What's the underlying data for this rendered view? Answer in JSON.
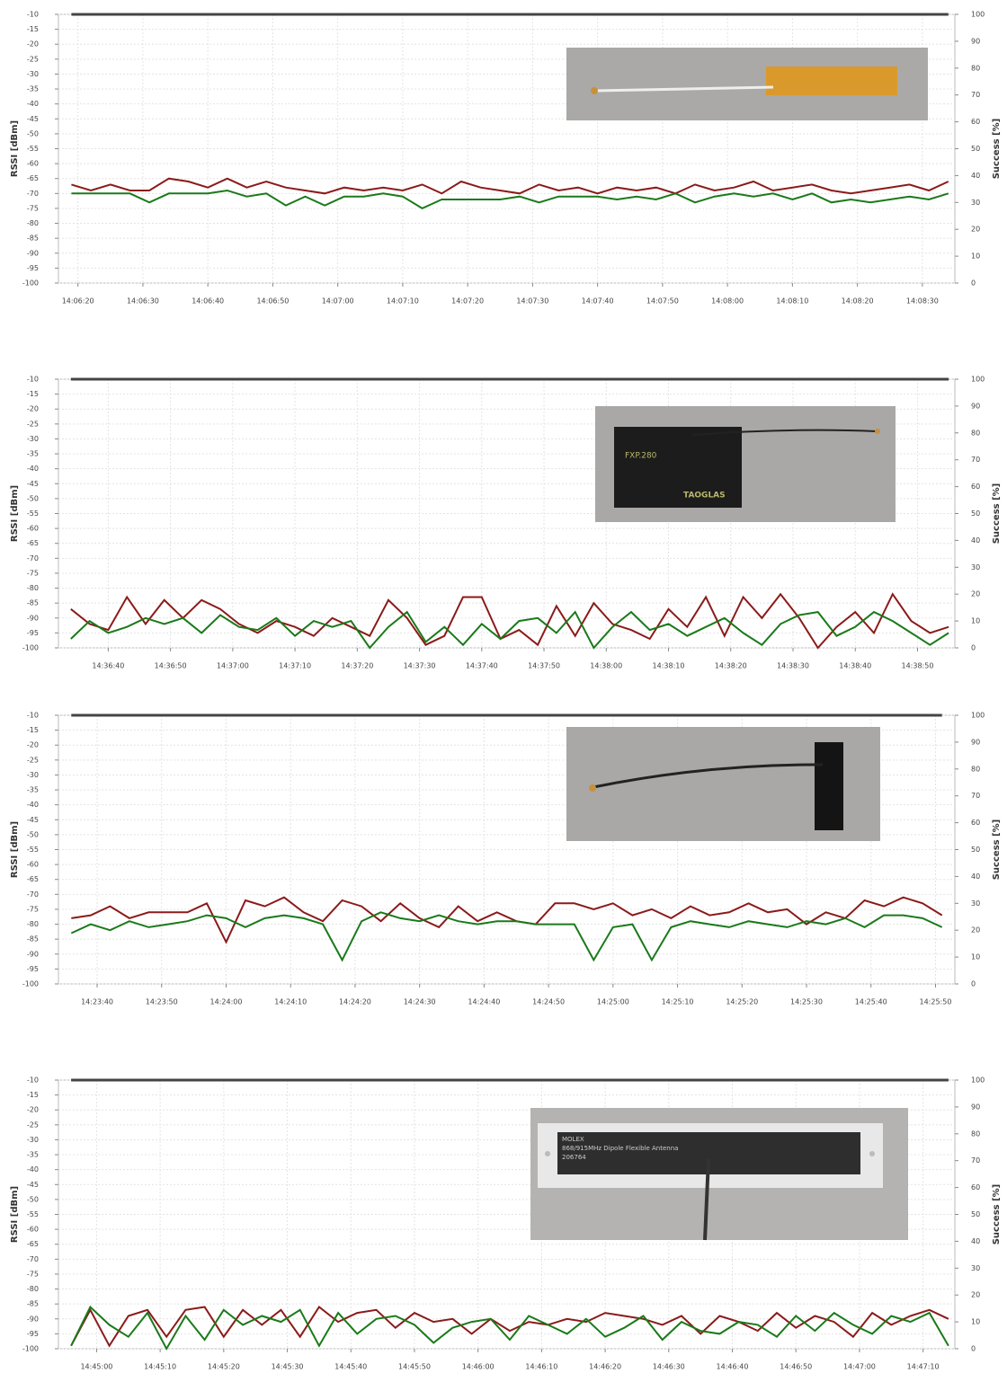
{
  "chart_data": [
    {
      "type": "line",
      "y_label": "RSSI [dBm]",
      "y2_label": "Success [%]",
      "x": [
        "14:06:19",
        "14:06:22",
        "14:06:25",
        "14:06:28",
        "14:06:31",
        "14:06:34",
        "14:06:37",
        "14:06:40",
        "14:06:43",
        "14:06:46",
        "14:06:49",
        "14:06:52",
        "14:06:55",
        "14:06:58",
        "14:07:01",
        "14:07:04",
        "14:07:07",
        "14:07:10",
        "14:07:13",
        "14:07:16",
        "14:07:19",
        "14:07:22",
        "14:07:25",
        "14:07:28",
        "14:07:31",
        "14:07:34",
        "14:07:37",
        "14:07:40",
        "14:07:43",
        "14:07:46",
        "14:07:49",
        "14:07:52",
        "14:07:55",
        "14:07:58",
        "14:08:01",
        "14:08:04",
        "14:08:07",
        "14:08:10",
        "14:08:13",
        "14:08:16",
        "14:08:19",
        "14:08:22",
        "14:08:25",
        "14:08:28",
        "14:08:31",
        "14:08:34"
      ],
      "xlim": [
        "14:06:17",
        "14:08:35"
      ],
      "xticks": [
        "14:06:20",
        "14:06:30",
        "14:06:40",
        "14:06:50",
        "14:07:00",
        "14:07:10",
        "14:07:20",
        "14:07:30",
        "14:07:40",
        "14:07:50",
        "14:08:00",
        "14:08:10",
        "14:08:20",
        "14:08:30"
      ],
      "ylim": [
        -100,
        -10
      ],
      "yticks": [
        -10,
        -15,
        -20,
        -25,
        -30,
        -35,
        -40,
        -45,
        -50,
        -55,
        -60,
        -65,
        -70,
        -75,
        -80,
        -85,
        -90,
        -95,
        -100
      ],
      "y2lim": [
        0,
        100
      ],
      "y2ticks": [
        0,
        10,
        20,
        30,
        40,
        50,
        60,
        70,
        80,
        90,
        100
      ],
      "grid": true,
      "series": [
        {
          "color": "#8b1a1a",
          "values": [
            -67,
            -69,
            -67,
            -69,
            -69,
            -65,
            -66,
            -68,
            -65,
            -68,
            -66,
            -68,
            -69,
            -70,
            -68,
            -69,
            -68,
            -69,
            -67,
            -70,
            -66,
            -68,
            -69,
            -70,
            -67,
            -69,
            -68,
            -70,
            -68,
            -69,
            -68,
            -70,
            -67,
            -69,
            -68,
            -66,
            -69,
            -68,
            -67,
            -69,
            -70,
            -69,
            -68,
            -67,
            -69,
            -66
          ]
        },
        {
          "color": "#1a7a1a",
          "values": [
            -70,
            -70,
            -70,
            -70,
            -73,
            -70,
            -70,
            -70,
            -69,
            -71,
            -70,
            -74,
            -71,
            -74,
            -71,
            -71,
            -70,
            -71,
            -75,
            -72,
            -72,
            -72,
            -72,
            -71,
            -73,
            -71,
            -71,
            -71,
            -72,
            -71,
            -72,
            -70,
            -73,
            -71,
            -70,
            -71,
            -70,
            -72,
            -70,
            -73,
            -72,
            -73,
            -72,
            -71,
            -72,
            -70
          ]
        },
        {
          "color": "#444444",
          "axis": "y2",
          "values": [
            100,
            100,
            100,
            100,
            100,
            100,
            100,
            100,
            100,
            100,
            100,
            100,
            100,
            100,
            100,
            100,
            100,
            100,
            100,
            100,
            100,
            100,
            100,
            100,
            100,
            100,
            100,
            100,
            100,
            100,
            100,
            100,
            100,
            100,
            100,
            100,
            100,
            100,
            100,
            100,
            100,
            100,
            100,
            100,
            100,
            100
          ]
        }
      ]
    },
    {
      "type": "line",
      "y_label": "RSSI [dBm]",
      "y2_label": "Success [%]",
      "x": [
        "14:36:34",
        "14:36:37",
        "14:36:40",
        "14:36:43",
        "14:36:46",
        "14:36:49",
        "14:36:52",
        "14:36:55",
        "14:36:58",
        "14:37:01",
        "14:37:04",
        "14:37:07",
        "14:37:10",
        "14:37:13",
        "14:37:16",
        "14:37:19",
        "14:37:22",
        "14:37:25",
        "14:37:28",
        "14:37:31",
        "14:37:34",
        "14:37:37",
        "14:37:40",
        "14:37:43",
        "14:37:46",
        "14:37:49",
        "14:37:52",
        "14:37:55",
        "14:37:58",
        "14:38:01",
        "14:38:04",
        "14:38:07",
        "14:38:10",
        "14:38:13",
        "14:38:16",
        "14:38:19",
        "14:38:22",
        "14:38:25",
        "14:38:28",
        "14:38:31",
        "14:38:34",
        "14:38:37",
        "14:38:40",
        "14:38:43",
        "14:38:46",
        "14:38:49",
        "14:38:52",
        "14:38:55"
      ],
      "xlim": [
        "14:36:32",
        "14:38:56"
      ],
      "xticks": [
        "14:36:40",
        "14:36:50",
        "14:37:00",
        "14:37:10",
        "14:37:20",
        "14:37:30",
        "14:37:40",
        "14:37:50",
        "14:38:00",
        "14:38:10",
        "14:38:20",
        "14:38:30",
        "14:38:40",
        "14:38:50"
      ],
      "ylim": [
        -100,
        -10
      ],
      "yticks": [
        -10,
        -15,
        -20,
        -25,
        -30,
        -35,
        -40,
        -45,
        -50,
        -55,
        -60,
        -65,
        -70,
        -75,
        -80,
        -85,
        -90,
        -95,
        -100
      ],
      "y2lim": [
        0,
        100
      ],
      "y2ticks": [
        0,
        10,
        20,
        30,
        40,
        50,
        60,
        70,
        80,
        90,
        100
      ],
      "grid": true,
      "annotations": [
        "FXP.280",
        "TAOGLAS"
      ],
      "series": [
        {
          "color": "#8b1a1a",
          "values": [
            -87,
            -92,
            -94,
            -83,
            -92,
            -84,
            -90,
            -84,
            -87,
            -92,
            -95,
            -91,
            -93,
            -96,
            -90,
            -93,
            -96,
            -84,
            -90,
            -99,
            -96,
            -83,
            -83,
            -97,
            -94,
            -99,
            -86,
            -96,
            -85,
            -92,
            -94,
            -97,
            -87,
            -93,
            -83,
            -96,
            -83,
            -90,
            -82,
            -90,
            -100,
            -93,
            -88,
            -95,
            -82,
            -91,
            -95,
            -93
          ]
        },
        {
          "color": "#1a7a1a",
          "values": [
            -97,
            -91,
            -95,
            -93,
            -90,
            -92,
            -90,
            -95,
            -89,
            -93,
            -94,
            -90,
            -96,
            -91,
            -93,
            -91,
            -100,
            -93,
            -88,
            -98,
            -93,
            -99,
            -92,
            -97,
            -91,
            -90,
            -95,
            -88,
            -100,
            -93,
            -88,
            -94,
            -92,
            -96,
            -93,
            -90,
            -95,
            -99,
            -92,
            -89,
            -88,
            -96,
            -93,
            -88,
            -91,
            -95,
            -99,
            -95
          ]
        },
        {
          "color": "#444444",
          "axis": "y2",
          "values": [
            100,
            100,
            100,
            100,
            100,
            100,
            100,
            100,
            100,
            100,
            100,
            100,
            100,
            100,
            100,
            100,
            100,
            100,
            100,
            100,
            100,
            100,
            100,
            100,
            100,
            100,
            100,
            100,
            100,
            100,
            100,
            100,
            100,
            100,
            100,
            100,
            100,
            100,
            100,
            100,
            100,
            100,
            100,
            100,
            100,
            100,
            100,
            100
          ]
        }
      ]
    },
    {
      "type": "line",
      "y_label": "RSSI [dBm]",
      "y2_label": "Success [%]",
      "x": [
        "14:23:36",
        "14:23:39",
        "14:23:42",
        "14:23:45",
        "14:23:48",
        "14:23:51",
        "14:23:54",
        "14:23:57",
        "14:24:00",
        "14:24:03",
        "14:24:06",
        "14:24:09",
        "14:24:12",
        "14:24:15",
        "14:24:18",
        "14:24:21",
        "14:24:24",
        "14:24:27",
        "14:24:30",
        "14:24:33",
        "14:24:36",
        "14:24:39",
        "14:24:42",
        "14:24:45",
        "14:24:48",
        "14:24:51",
        "14:24:54",
        "14:24:57",
        "14:25:00",
        "14:25:03",
        "14:25:06",
        "14:25:09",
        "14:25:12",
        "14:25:15",
        "14:25:18",
        "14:25:21",
        "14:25:24",
        "14:25:27",
        "14:25:30",
        "14:25:33",
        "14:25:36",
        "14:25:39",
        "14:25:42",
        "14:25:45",
        "14:25:48",
        "14:25:51"
      ],
      "xlim": [
        "14:23:34",
        "14:25:53"
      ],
      "xticks": [
        "14:23:40",
        "14:23:50",
        "14:24:00",
        "14:24:10",
        "14:24:20",
        "14:24:30",
        "14:24:40",
        "14:24:50",
        "14:25:00",
        "14:25:10",
        "14:25:20",
        "14:25:30",
        "14:25:40",
        "14:25:50"
      ],
      "ylim": [
        -100,
        -10
      ],
      "yticks": [
        -10,
        -15,
        -20,
        -25,
        -30,
        -35,
        -40,
        -45,
        -50,
        -55,
        -60,
        -65,
        -70,
        -75,
        -80,
        -85,
        -90,
        -95,
        -100
      ],
      "y2lim": [
        0,
        100
      ],
      "y2ticks": [
        0,
        10,
        20,
        30,
        40,
        50,
        60,
        70,
        80,
        90,
        100
      ],
      "grid": true,
      "series": [
        {
          "color": "#8b1a1a",
          "values": [
            -78,
            -77,
            -74,
            -78,
            -76,
            -76,
            -76,
            -73,
            -86,
            -72,
            -74,
            -71,
            -76,
            -79,
            -72,
            -74,
            -79,
            -73,
            -78,
            -81,
            -74,
            -79,
            -76,
            -79,
            -80,
            -73,
            -73,
            -75,
            -73,
            -77,
            -75,
            -78,
            -74,
            -77,
            -76,
            -73,
            -76,
            -75,
            -80,
            -76,
            -78,
            -72,
            -74,
            -71,
            -73,
            -77
          ]
        },
        {
          "color": "#1a7a1a",
          "values": [
            -83,
            -80,
            -82,
            -79,
            -81,
            -80,
            -79,
            -77,
            -78,
            -81,
            -78,
            -77,
            -78,
            -80,
            -92,
            -79,
            -76,
            -78,
            -79,
            -77,
            -79,
            -80,
            -79,
            -79,
            -80,
            -80,
            -80,
            -92,
            -81,
            -80,
            -92,
            -81,
            -79,
            -80,
            -81,
            -79,
            -80,
            -81,
            -79,
            -80,
            -78,
            -81,
            -77,
            -77,
            -78,
            -81
          ]
        },
        {
          "color": "#444444",
          "axis": "y2",
          "values": [
            100,
            100,
            100,
            100,
            100,
            100,
            100,
            100,
            100,
            100,
            100,
            100,
            100,
            100,
            100,
            100,
            100,
            100,
            100,
            100,
            100,
            100,
            100,
            100,
            100,
            100,
            100,
            100,
            100,
            100,
            100,
            100,
            100,
            100,
            100,
            100,
            100,
            100,
            100,
            100,
            100,
            100,
            100,
            100,
            100,
            100
          ]
        }
      ]
    },
    {
      "type": "line",
      "y_label": "RSSI [dBm]",
      "y2_label": "Success [%]",
      "x": [
        "14:44:56",
        "14:44:59",
        "14:45:02",
        "14:45:05",
        "14:45:08",
        "14:45:11",
        "14:45:14",
        "14:45:17",
        "14:45:20",
        "14:45:23",
        "14:45:26",
        "14:45:29",
        "14:45:32",
        "14:45:35",
        "14:45:38",
        "14:45:41",
        "14:45:44",
        "14:45:47",
        "14:45:50",
        "14:45:53",
        "14:45:56",
        "14:45:59",
        "14:46:02",
        "14:46:05",
        "14:46:08",
        "14:46:11",
        "14:46:14",
        "14:46:17",
        "14:46:20",
        "14:46:23",
        "14:46:26",
        "14:46:29",
        "14:46:32",
        "14:46:35",
        "14:46:38",
        "14:46:41",
        "14:46:44",
        "14:46:47",
        "14:46:50",
        "14:46:53",
        "14:46:56",
        "14:46:59",
        "14:47:02",
        "14:47:05",
        "14:47:08",
        "14:47:11",
        "14:47:14"
      ],
      "xlim": [
        "14:44:54",
        "14:47:15"
      ],
      "xticks": [
        "14:45:00",
        "14:45:10",
        "14:45:20",
        "14:45:30",
        "14:45:40",
        "14:45:50",
        "14:46:00",
        "14:46:10",
        "14:46:20",
        "14:46:30",
        "14:46:40",
        "14:46:50",
        "14:47:00",
        "14:47:10"
      ],
      "ylim": [
        -100,
        -10
      ],
      "yticks": [
        -10,
        -15,
        -20,
        -25,
        -30,
        -35,
        -40,
        -45,
        -50,
        -55,
        -60,
        -65,
        -70,
        -75,
        -80,
        -85,
        -90,
        -95,
        -100
      ],
      "y2lim": [
        0,
        100
      ],
      "y2ticks": [
        0,
        10,
        20,
        30,
        40,
        50,
        60,
        70,
        80,
        90,
        100
      ],
      "grid": true,
      "annotations": [
        "MOLEX",
        "868/915MHz Dipole Flexible Antenna",
        "206764"
      ],
      "series": [
        {
          "color": "#8b1a1a",
          "values": [
            -99,
            -87,
            -99,
            -89,
            -87,
            -96,
            -87,
            -86,
            -96,
            -87,
            -92,
            -87,
            -96,
            -86,
            -91,
            -88,
            -87,
            -93,
            -88,
            -91,
            -90,
            -95,
            -90,
            -94,
            -91,
            -92,
            -90,
            -91,
            -88,
            -89,
            -90,
            -92,
            -89,
            -95,
            -89,
            -91,
            -94,
            -88,
            -93,
            -89,
            -91,
            -96,
            -88,
            -92,
            -89,
            -87,
            -90
          ]
        },
        {
          "color": "#1a7a1a",
          "values": [
            -99,
            -86,
            -92,
            -96,
            -88,
            -100,
            -89,
            -97,
            -87,
            -92,
            -89,
            -91,
            -87,
            -99,
            -88,
            -95,
            -90,
            -89,
            -92,
            -98,
            -93,
            -91,
            -90,
            -97,
            -89,
            -92,
            -95,
            -90,
            -96,
            -93,
            -89,
            -97,
            -91,
            -94,
            -95,
            -91,
            -92,
            -96,
            -89,
            -94,
            -88,
            -92,
            -95,
            -89,
            -91,
            -88,
            -99
          ]
        },
        {
          "color": "#444444",
          "axis": "y2",
          "values": [
            100,
            100,
            100,
            100,
            100,
            100,
            100,
            100,
            100,
            100,
            100,
            100,
            100,
            100,
            100,
            100,
            100,
            100,
            100,
            100,
            100,
            100,
            100,
            100,
            100,
            100,
            100,
            100,
            100,
            100,
            100,
            100,
            100,
            100,
            100,
            100,
            100,
            100,
            100,
            100,
            100,
            100,
            100,
            100,
            100,
            100,
            100
          ]
        }
      ]
    }
  ]
}
